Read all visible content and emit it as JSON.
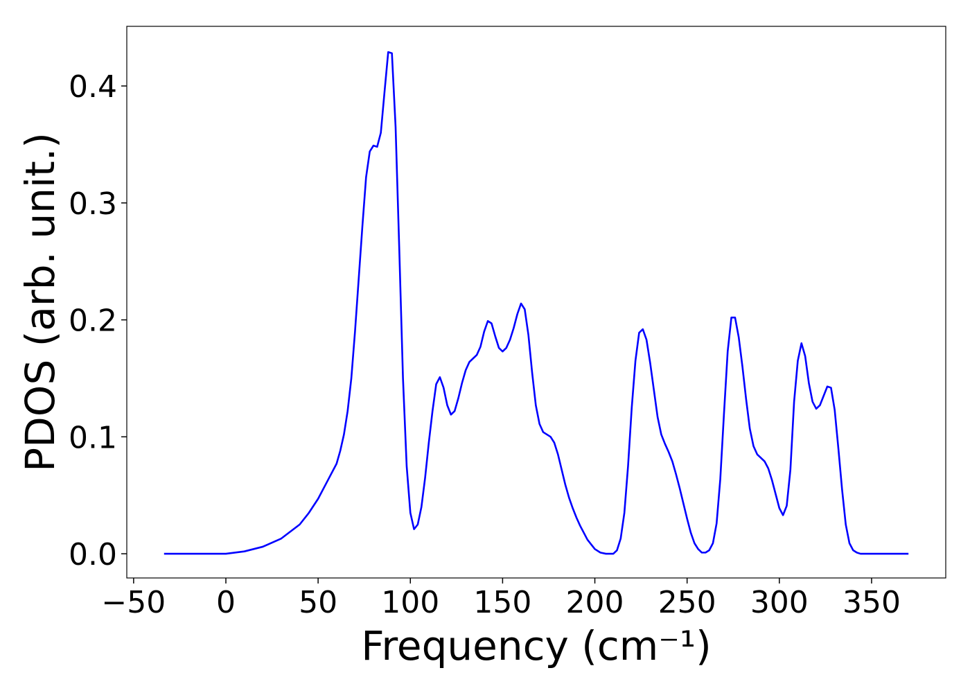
{
  "chart_data": {
    "type": "line",
    "xlabel": "Frequency (cm⁻¹)",
    "ylabel": "PDOS (arb. unit.)",
    "color": "#0000ff",
    "x": [
      -33.5,
      0,
      10,
      20,
      30,
      40,
      45,
      50,
      55,
      60,
      62,
      64,
      66,
      68,
      70,
      72,
      74,
      76,
      78,
      80,
      82,
      84,
      86,
      88,
      90,
      92,
      94,
      96,
      98,
      100,
      102,
      104,
      106,
      108,
      110,
      112,
      114,
      116,
      118,
      120,
      122,
      124,
      126,
      128,
      130,
      132,
      134,
      136,
      138,
      140,
      142,
      144,
      146,
      148,
      150,
      152,
      154,
      156,
      158,
      160,
      162,
      164,
      166,
      168,
      170,
      172,
      174,
      176,
      178,
      180,
      182,
      184,
      186,
      188,
      190,
      192,
      196,
      200,
      203,
      206,
      210,
      212,
      214,
      216,
      218,
      220,
      222,
      224,
      226,
      228,
      230,
      232,
      234,
      236,
      238,
      240,
      242,
      244,
      246,
      248,
      250,
      252,
      254,
      256,
      258,
      260,
      262,
      264,
      266,
      268,
      270,
      272,
      274,
      276,
      278,
      280,
      282,
      284,
      286,
      288,
      290,
      292,
      294,
      296,
      298,
      300,
      302,
      304,
      306,
      308,
      310,
      312,
      314,
      316,
      318,
      320,
      322,
      324,
      326,
      328,
      330,
      332,
      334,
      336,
      338,
      340,
      342,
      344,
      370
    ],
    "values": [
      0,
      0,
      0.002,
      0.006,
      0.013,
      0.025,
      0.035,
      0.047,
      0.062,
      0.077,
      0.088,
      0.102,
      0.122,
      0.15,
      0.19,
      0.235,
      0.28,
      0.322,
      0.344,
      0.349,
      0.348,
      0.36,
      0.395,
      0.429,
      0.428,
      0.365,
      0.26,
      0.15,
      0.075,
      0.035,
      0.021,
      0.025,
      0.04,
      0.065,
      0.095,
      0.122,
      0.145,
      0.151,
      0.142,
      0.127,
      0.119,
      0.122,
      0.133,
      0.146,
      0.157,
      0.164,
      0.167,
      0.17,
      0.177,
      0.19,
      0.199,
      0.197,
      0.186,
      0.176,
      0.173,
      0.176,
      0.183,
      0.193,
      0.205,
      0.214,
      0.209,
      0.187,
      0.155,
      0.127,
      0.111,
      0.104,
      0.102,
      0.1,
      0.095,
      0.085,
      0.072,
      0.059,
      0.048,
      0.039,
      0.031,
      0.024,
      0.012,
      0.004,
      0.001,
      0,
      0,
      0.003,
      0.013,
      0.035,
      0.075,
      0.125,
      0.165,
      0.189,
      0.192,
      0.183,
      0.163,
      0.14,
      0.117,
      0.102,
      0.094,
      0.087,
      0.079,
      0.068,
      0.056,
      0.043,
      0.03,
      0.018,
      0.009,
      0.004,
      0.001,
      0.001,
      0.003,
      0.009,
      0.026,
      0.064,
      0.12,
      0.173,
      0.202,
      0.202,
      0.185,
      0.16,
      0.132,
      0.107,
      0.092,
      0.085,
      0.082,
      0.079,
      0.073,
      0.063,
      0.051,
      0.039,
      0.033,
      0.041,
      0.072,
      0.13,
      0.165,
      0.18,
      0.169,
      0.146,
      0.13,
      0.124,
      0.127,
      0.135,
      0.143,
      0.142,
      0.123,
      0.09,
      0.055,
      0.025,
      0.009,
      0.003,
      0.001,
      0,
      0
    ],
    "xlim": [
      -53.7,
      390.2
    ],
    "ylim": [
      -0.0207,
      0.451
    ],
    "xticks": [
      {
        "value": -50,
        "label": "−50"
      },
      0,
      50,
      100,
      150,
      200,
      250,
      300,
      350
    ],
    "yticks": [
      {
        "value": 0,
        "label": "0.0"
      },
      0.1,
      0.2,
      0.3,
      0.4
    ]
  }
}
